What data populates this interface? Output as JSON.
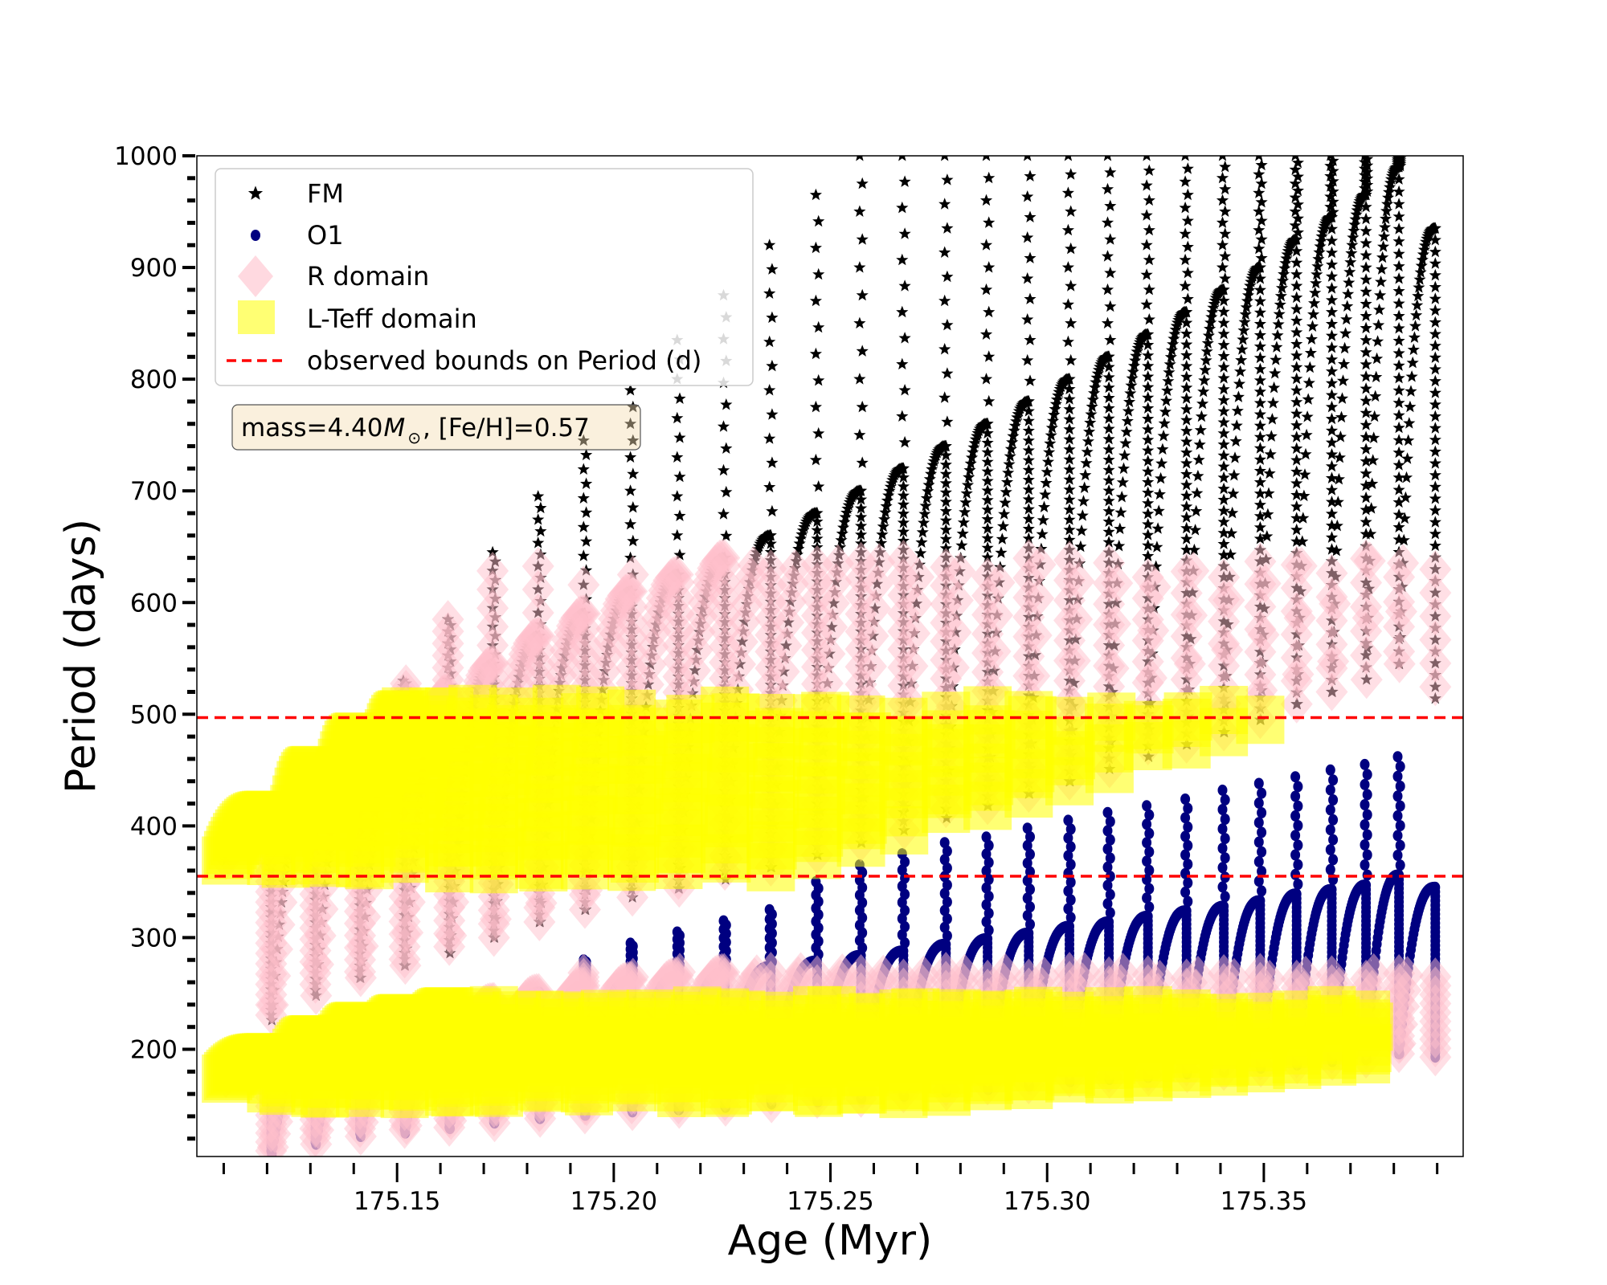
{
  "chart_data": {
    "type": "scatter",
    "title": "",
    "xlabel": "Age (Myr)",
    "ylabel": "Period (days)",
    "xlim": [
      175.1038,
      175.396
    ],
    "ylim": [
      104,
      1000
    ],
    "xticks": [
      175.15,
      175.2,
      175.25,
      175.3,
      175.35
    ],
    "xtick_labels": [
      "175.15",
      "175.20",
      "175.25",
      "175.30",
      "175.35"
    ],
    "yticks": [
      200,
      300,
      400,
      500,
      600,
      700,
      800,
      900,
      1000
    ],
    "ytick_labels": [
      "200",
      "300",
      "400",
      "500",
      "600",
      "700",
      "800",
      "900",
      "1000"
    ],
    "grid": false,
    "legend_position": "top-left",
    "legend": [
      {
        "label": "FM",
        "marker": "star",
        "color": "#000000"
      },
      {
        "label": "O1",
        "marker": "circle",
        "color": "#000080"
      },
      {
        "label": "R domain",
        "marker": "diamond",
        "color": "#ffc0cb"
      },
      {
        "label": "L-Teff domain",
        "marker": "square",
        "color": "#ffff00"
      },
      {
        "label": "observed bounds on Period (d)",
        "marker": "dashed-line",
        "color": "#ff0000"
      }
    ],
    "annotation": {
      "prefix": "mass=4.40",
      "symbol": "M",
      "sub": "⊙",
      "suffix": ", [Fe/H]=0.57"
    },
    "observed_period_bounds": [
      355,
      497
    ],
    "cycles": {
      "start_age": [
        175.1105,
        175.1211,
        175.1313,
        175.1416,
        175.1519,
        175.1622,
        175.1725,
        175.183,
        175.1935,
        175.2043,
        175.2151,
        175.2258,
        175.2364,
        175.2471,
        175.2572,
        175.267,
        175.2768,
        175.2864,
        175.2959,
        175.3053,
        175.3144,
        175.3234,
        175.3323,
        175.3409,
        175.3493,
        175.3577,
        175.3658,
        175.3737,
        175.3813
      ],
      "final_age": 175.3897,
      "fm_high": [
        410,
        450,
        480,
        500,
        520,
        545,
        570,
        590,
        610,
        625,
        640,
        660,
        680,
        700,
        720,
        740,
        760,
        780,
        800,
        820,
        840,
        860,
        880,
        900,
        925,
        945,
        965,
        990,
        935
      ],
      "fm_drop": [
        226,
        248,
        264,
        275,
        286,
        300,
        314,
        325,
        336,
        344,
        352,
        363,
        374,
        385,
        396,
        407,
        418,
        429,
        440,
        451,
        462,
        473,
        484,
        495,
        509,
        520,
        531,
        545,
        514
      ],
      "fm_spike": [
        410,
        450,
        480,
        530,
        585,
        645,
        695,
        745,
        790,
        835,
        875,
        920,
        965,
        1000,
        1000,
        1000,
        1000,
        1000,
        1000,
        1000,
        1000,
        1000,
        1000,
        1000,
        1000,
        1000,
        1000,
        1000,
        935
      ],
      "o1_high": [
        193,
        209,
        221,
        228,
        234,
        243,
        251,
        257,
        262,
        266,
        269,
        274,
        279,
        284,
        288,
        294,
        299,
        304,
        310,
        314,
        319,
        324,
        328,
        333,
        339,
        343,
        347,
        356,
        345
      ],
      "o1_drop": [
        106,
        115,
        122,
        125,
        129,
        134,
        138,
        141,
        144,
        146,
        148,
        151,
        153,
        156,
        158,
        162,
        164,
        167,
        171,
        173,
        175,
        178,
        180,
        183,
        186,
        189,
        191,
        196,
        190
      ],
      "o1_spike": [
        193,
        209,
        221,
        228,
        234,
        243,
        251,
        280,
        295,
        305,
        315,
        325,
        350,
        365,
        375,
        385,
        390,
        398,
        405,
        412,
        418,
        424,
        432,
        438,
        444,
        450,
        455,
        462,
        345
      ]
    },
    "r_domain": {
      "fm_max_period": 640,
      "o1_max_period": 270
    },
    "lteff_domain": {
      "max_age": 175.375,
      "fm_period_range": [
        360,
        505
      ],
      "o1_period_range": [
        160,
        235
      ]
    }
  }
}
